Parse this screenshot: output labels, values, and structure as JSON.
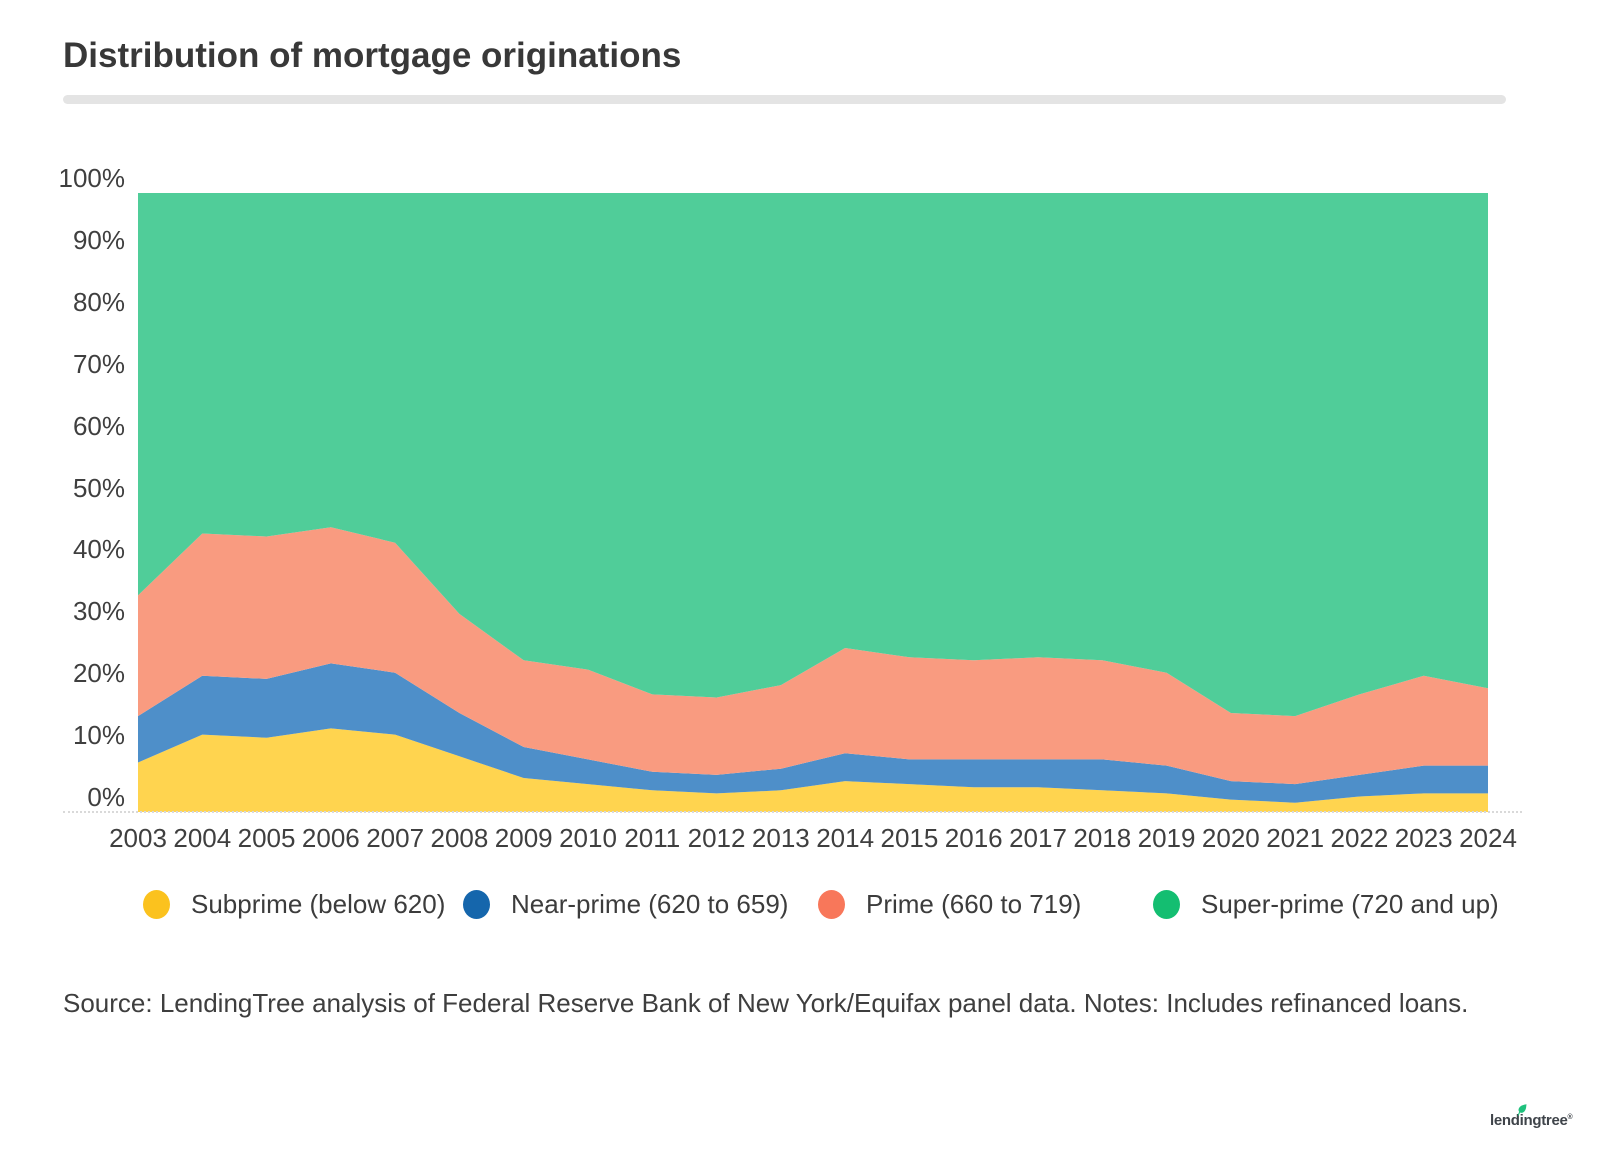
{
  "header": {
    "title": "Distribution of mortgage originations"
  },
  "chart_data": {
    "type": "area",
    "stacked": true,
    "title": "Distribution of mortgage originations",
    "unit": "percent",
    "grid": false,
    "legend_position": "bottom",
    "ylim": [
      0,
      100
    ],
    "x": [
      "2003",
      "2004",
      "2005",
      "2006",
      "2007",
      "2008",
      "2009",
      "2010",
      "2011",
      "2012",
      "2013",
      "2014",
      "2015",
      "2016",
      "2017",
      "2018",
      "2019",
      "2020",
      "2021",
      "2022",
      "2023",
      "2024"
    ],
    "y_ticks": [
      {
        "value": 0,
        "label": "0%"
      },
      {
        "value": 10,
        "label": "10%"
      },
      {
        "value": 20,
        "label": "20%"
      },
      {
        "value": 30,
        "label": "30%"
      },
      {
        "value": 40,
        "label": "40%"
      },
      {
        "value": 50,
        "label": "50%"
      },
      {
        "value": 60,
        "label": "60%"
      },
      {
        "value": 70,
        "label": "70%"
      },
      {
        "value": 80,
        "label": "80%"
      },
      {
        "value": 90,
        "label": "90%"
      },
      {
        "value": 100,
        "label": "100%"
      }
    ],
    "series": [
      {
        "name": "Subprime (below 620)",
        "color": "#fbc21e",
        "area_color": "#ffd44f",
        "values": [
          8,
          12.5,
          12,
          13.5,
          12.5,
          9,
          5.5,
          4.5,
          3.5,
          3,
          3.5,
          5,
          4.5,
          4,
          4,
          3.5,
          3,
          2,
          1.5,
          2.5,
          3,
          3
        ]
      },
      {
        "name": "Near-prime (620 to 659)",
        "color": "#1566ac",
        "area_color": "#4e8fc9",
        "values": [
          7.5,
          9.5,
          9.5,
          10.5,
          10,
          7,
          5,
          4,
          3,
          3,
          3.5,
          4.5,
          4,
          4.5,
          4.5,
          5,
          4.5,
          3,
          3,
          3.5,
          4.5,
          4.5
        ]
      },
      {
        "name": "Prime (660 to 719)",
        "color": "#f8775a",
        "area_color": "#f99b80",
        "values": [
          19.5,
          23,
          23,
          22,
          21,
          16,
          14,
          14.5,
          12.5,
          12.5,
          13.5,
          17,
          16.5,
          16,
          16.5,
          16,
          15,
          11,
          11,
          13,
          14.5,
          12.5
        ]
      },
      {
        "name": "Super-prime (720 and up)",
        "color": "#14be71",
        "area_color": "#50cd99",
        "values": [
          65,
          55,
          55.5,
          54,
          56.5,
          68,
          75.5,
          77,
          81,
          81.5,
          79.5,
          73.5,
          75,
          75.5,
          75,
          75.5,
          77.5,
          84,
          84.5,
          81,
          78,
          80
        ]
      }
    ]
  },
  "footer": {
    "source": "Source: LendingTree analysis of Federal Reserve Bank of New York/Equifax panel data. Notes: Includes refinanced loans."
  },
  "logo": {
    "text": "lendingtree"
  }
}
